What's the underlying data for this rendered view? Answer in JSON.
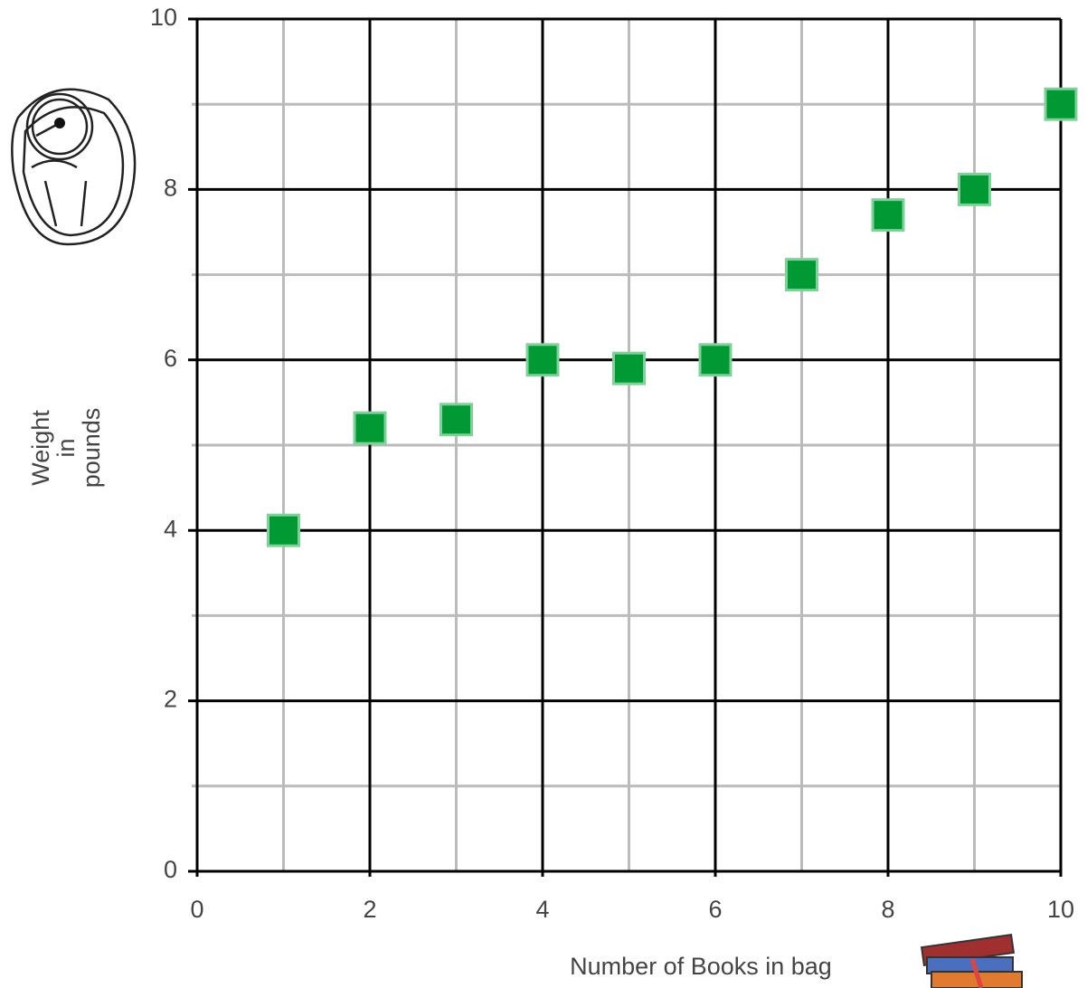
{
  "chart_data": {
    "type": "scatter",
    "xlabel": "Number of Books in bag",
    "ylabel": [
      "Weight",
      "in",
      "pounds"
    ],
    "x": [
      1,
      2,
      3,
      4,
      5,
      6,
      7,
      8,
      9,
      10
    ],
    "series": [
      {
        "color": "#009933",
        "values": [
          4.0,
          5.2,
          5.3,
          6.0,
          5.9,
          6.0,
          7.0,
          7.7,
          8.0,
          9.0
        ]
      }
    ],
    "xlim": [
      0,
      10
    ],
    "ylim": [
      0,
      10
    ],
    "xticks": [
      0,
      2,
      4,
      6,
      8,
      10
    ],
    "yticks": [
      0,
      2,
      4,
      6,
      8,
      10
    ],
    "xminor_ticks": [
      1,
      3,
      5,
      7,
      9
    ],
    "yminor_ticks": [
      1,
      3,
      5,
      7,
      9
    ],
    "grid": true
  }
}
